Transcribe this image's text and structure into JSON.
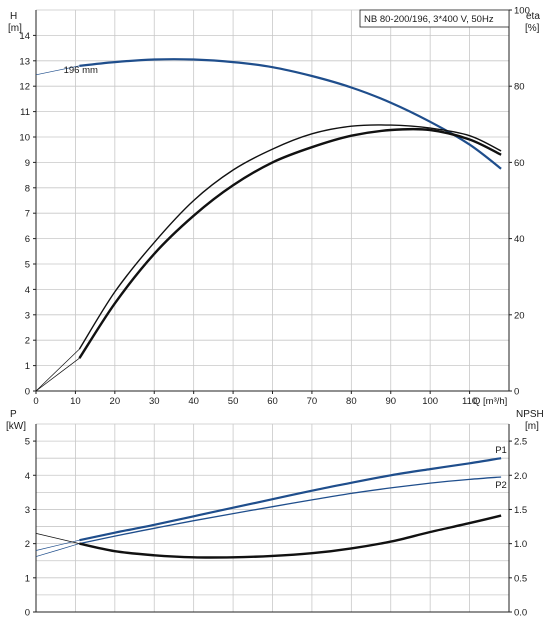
{
  "chart_data": [
    {
      "type": "line",
      "title": "NB 80-200/196, 3*400 V, 50Hz",
      "xlabel": "Q [m³/h]",
      "x_unit_tick": "Q [m³/h]",
      "xlim": [
        0,
        120
      ],
      "x_ticks": [
        "0",
        "10",
        "20",
        "30",
        "40",
        "50",
        "60",
        "70",
        "80",
        "90",
        "100",
        "110"
      ],
      "y_left": {
        "label_top": "H",
        "label_unit": "[m]",
        "ylim": [
          0,
          15
        ],
        "ticks": [
          "0",
          "1",
          "2",
          "3",
          "4",
          "5",
          "6",
          "7",
          "8",
          "9",
          "10",
          "11",
          "12",
          "13",
          "14"
        ]
      },
      "y_right": {
        "label_top": "eta",
        "label_unit": "[%]",
        "ylim": [
          0,
          100
        ],
        "ticks": [
          "0",
          "20",
          "40",
          "60",
          "80",
          "100"
        ]
      },
      "grid": true,
      "series": [
        {
          "name": "196 mm",
          "axis": "left",
          "color": "#1f4e8c",
          "x": [
            11,
            20,
            30,
            40,
            50,
            60,
            70,
            80,
            90,
            100,
            110,
            118
          ],
          "y": [
            12.8,
            12.95,
            13.05,
            13.05,
            12.95,
            12.75,
            12.4,
            11.95,
            11.35,
            10.6,
            9.7,
            8.75
          ]
        },
        {
          "axis": "right",
          "color": "#111111",
          "x": [
            11,
            20,
            30,
            40,
            50,
            60,
            70,
            80,
            90,
            100,
            110,
            118
          ],
          "y": [
            8.6,
            23,
            36,
            46,
            54,
            60,
            64,
            67,
            68.5,
            68.5,
            66,
            62
          ]
        },
        {
          "axis": "right",
          "color": "#111111",
          "x": [
            11,
            20,
            30,
            40,
            50,
            60,
            70,
            80,
            90,
            100,
            110,
            118
          ],
          "y": [
            11,
            26,
            39,
            50,
            58,
            63.5,
            67.5,
            69.5,
            69.8,
            69,
            67,
            63
          ]
        }
      ],
      "extrapolation": [
        {
          "axis": "left",
          "x": [
            0,
            11
          ],
          "y": [
            12.45,
            12.8
          ]
        },
        {
          "axis": "right",
          "x": [
            0,
            11
          ],
          "y": [
            0,
            8.6
          ]
        },
        {
          "axis": "right",
          "x": [
            0,
            11
          ],
          "y": [
            0,
            11
          ]
        }
      ]
    },
    {
      "type": "line",
      "xlim": [
        0,
        120
      ],
      "y_left": {
        "label_top": "P",
        "label_unit": "[kW]",
        "ylim": [
          0,
          5.5
        ],
        "ticks": [
          "0",
          "1",
          "2",
          "3",
          "4",
          "5"
        ]
      },
      "y_right": {
        "label_top": "NPSH",
        "label_unit": "[m]",
        "ylim": [
          0,
          2.75
        ],
        "ticks": [
          "0.0",
          "0.5",
          "1.0",
          "1.5",
          "2.0",
          "2.5"
        ]
      },
      "grid": true,
      "series": [
        {
          "name": "P1",
          "axis": "left",
          "color": "#1f4e8c",
          "x": [
            11,
            20,
            30,
            40,
            50,
            60,
            70,
            80,
            90,
            100,
            110,
            118
          ],
          "y": [
            2.1,
            2.32,
            2.55,
            2.8,
            3.05,
            3.3,
            3.55,
            3.78,
            4.0,
            4.18,
            4.35,
            4.5
          ]
        },
        {
          "name": "P2",
          "axis": "left",
          "color": "#1f4e8c",
          "x": [
            11,
            20,
            30,
            40,
            50,
            60,
            70,
            80,
            90,
            100,
            110,
            118
          ],
          "y": [
            2.0,
            2.22,
            2.45,
            2.67,
            2.88,
            3.08,
            3.28,
            3.47,
            3.63,
            3.77,
            3.88,
            3.95
          ]
        },
        {
          "axis": "right",
          "color": "#111111",
          "x": [
            11,
            20,
            30,
            40,
            50,
            60,
            70,
            80,
            90,
            100,
            110,
            118
          ],
          "y": [
            1.0,
            0.89,
            0.83,
            0.8,
            0.8,
            0.82,
            0.86,
            0.93,
            1.03,
            1.17,
            1.3,
            1.41
          ]
        }
      ],
      "extrapolation": [
        {
          "axis": "left",
          "x": [
            0,
            11
          ],
          "y": [
            1.62,
            2.0
          ]
        },
        {
          "axis": "left",
          "x": [
            0,
            11
          ],
          "y": [
            1.8,
            2.1
          ]
        },
        {
          "axis": "right",
          "x": [
            0,
            11
          ],
          "y": [
            1.15,
            1.0
          ]
        }
      ]
    }
  ]
}
